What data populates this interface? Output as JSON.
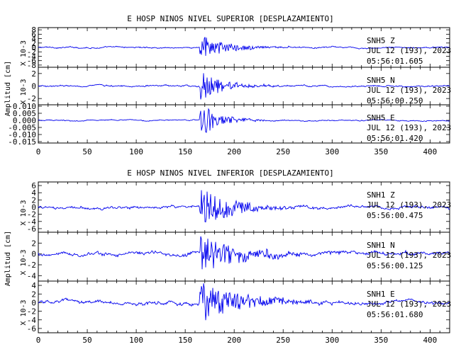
{
  "colors": {
    "trace": "#0000ee",
    "axis": "#000000",
    "background": "#ffffff"
  },
  "chart_data": [
    {
      "type": "line",
      "title": "E HOSP NINOS NIVEL SUPERIOR [DESPLAZAMIENTO]",
      "xlabel": "",
      "ylabel": "Amplitud [cm]",
      "xlim": [
        0,
        420
      ],
      "xticks": [
        "0",
        "50",
        "100",
        "150",
        "200",
        "250",
        "300",
        "350",
        "400"
      ],
      "panels": [
        {
          "scale_label": "X 10-3",
          "yticks": [
            "8",
            "6",
            "4",
            "2",
            "0",
            "-2",
            "-4",
            "-6",
            "-8"
          ],
          "ylim": [
            -9,
            9
          ],
          "series": [
            {
              "name": "SNH5 Z",
              "approx": {
                "onset": 165,
                "peak": 6.0,
                "noise": 0.5,
                "decay": 0.04
              }
            }
          ],
          "station": "SNH5   Z",
          "date": "JUL 12 (193), 2023",
          "time": "05:56:01.605"
        },
        {
          "scale_label": "X 10-3",
          "yticks": [
            "2",
            "0",
            "-2"
          ],
          "ylim": [
            -3,
            3
          ],
          "series": [
            {
              "name": "SNH5 N",
              "approx": {
                "onset": 165,
                "peak": 2.6,
                "noise": 0.2,
                "decay": 0.045
              }
            }
          ],
          "station": "SNH5   N",
          "date": "JUL 12 (193), 2023",
          "time": "05:56:00.250"
        },
        {
          "scale_label": "",
          "yticks": [
            "0.010",
            "0.005",
            "0.000",
            "-0.005",
            "-0.010",
            "-0.015"
          ],
          "ylim": [
            -0.016,
            0.011
          ],
          "series": [
            {
              "name": "SNH5 E",
              "approx": {
                "onset": 165,
                "peak": 0.012,
                "noise": 0.0006,
                "decay": 0.05
              }
            }
          ],
          "station": "SNH5   E",
          "date": "JUL 12 (193), 2023",
          "time": "05:56:01.420"
        }
      ]
    },
    {
      "type": "line",
      "title": "E HOSP NINOS NIVEL INFERIOR [DESPLAZAMIENTO]",
      "xlabel": "",
      "ylabel": "Amplitud [cm]",
      "xlim": [
        0,
        420
      ],
      "xticks": [
        "0",
        "50",
        "100",
        "150",
        "200",
        "250",
        "300",
        "350",
        "400"
      ],
      "panels": [
        {
          "scale_label": "X 10-3",
          "yticks": [
            "6",
            "4",
            "2",
            "0",
            "-2",
            "-4",
            "-6"
          ],
          "ylim": [
            -7,
            7
          ],
          "series": [
            {
              "name": "SNH1 Z",
              "approx": {
                "onset": 165,
                "peak": 5.5,
                "noise": 0.6,
                "decay": 0.03
              }
            }
          ],
          "station": "SNH1   Z",
          "date": "JUL 12 (193), 2023",
          "time": "05:56:00.475"
        },
        {
          "scale_label": "X 10-3",
          "yticks": [
            "2",
            "0",
            "-2",
            "-4"
          ],
          "ylim": [
            -5,
            4
          ],
          "series": [
            {
              "name": "SNH1 N",
              "approx": {
                "onset": 165,
                "peak": 3.5,
                "noise": 0.55,
                "decay": 0.025
              }
            }
          ],
          "station": "SNH1   N",
          "date": "JUL 12 (193), 2023",
          "time": "05:56:00.125"
        },
        {
          "scale_label": "X 10-3",
          "yticks": [
            "4",
            "2",
            "0",
            "-2",
            "-4",
            "-6"
          ],
          "ylim": [
            -7,
            5
          ],
          "series": [
            {
              "name": "SNH1 E",
              "approx": {
                "onset": 165,
                "peak": 5.0,
                "noise": 0.65,
                "decay": 0.025
              }
            }
          ],
          "station": "SNH1   E",
          "date": "JUL 12 (193), 2023",
          "time": "05:56:01.680"
        }
      ]
    }
  ]
}
